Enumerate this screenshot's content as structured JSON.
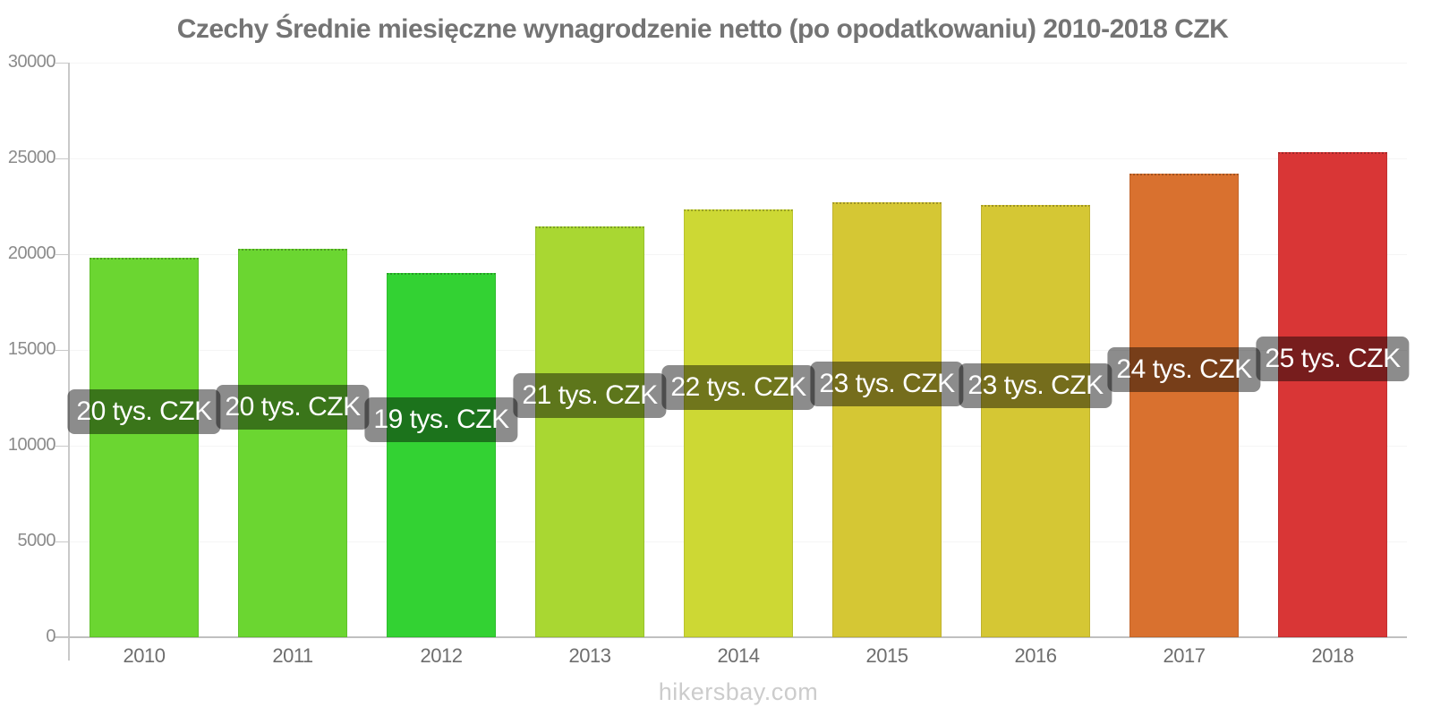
{
  "page": {
    "footer": "hikersbay.com"
  },
  "chart_data": {
    "type": "bar",
    "title": "Czechy Średnie miesięczne wynagrodzenie netto (po opodatkowaniu) 2010-2018 CZK",
    "categories": [
      "2010",
      "2011",
      "2012",
      "2013",
      "2014",
      "2015",
      "2016",
      "2017",
      "2018"
    ],
    "values": [
      19800,
      20300,
      19000,
      21450,
      22350,
      22700,
      22550,
      24200,
      25350
    ],
    "bar_labels": [
      "20 tys. CZK",
      "20 tys. CZK",
      "19 tys. CZK",
      "21 tys. CZK",
      "22 tys. CZK",
      "23 tys. CZK",
      "23 tys. CZK",
      "24 tys. CZK",
      "25 tys. CZK"
    ],
    "bar_colors": [
      "#6bd631",
      "#6bd631",
      "#33d233",
      "#a9d732",
      "#cdd834",
      "#d5c734",
      "#d5c734",
      "#d9712f",
      "#d93636"
    ],
    "xlabel": "",
    "ylabel": "",
    "ylim": [
      0,
      30000
    ],
    "yticks": [
      0,
      5000,
      10000,
      15000,
      20000,
      25000,
      30000
    ],
    "grid": true,
    "legend": false,
    "label_style": {
      "background": "rgba(0,0,0,0.45)",
      "text_color": "#ffffff"
    },
    "colors": {
      "axis": "#c9c9c9",
      "baseline": "#c0c0c0",
      "gridline": "#f5f5f5",
      "title_text": "#747474",
      "ytick_text": "#8b8b8b",
      "xtick_text": "#6e6e6e",
      "footer_text": "#cccccc"
    }
  }
}
